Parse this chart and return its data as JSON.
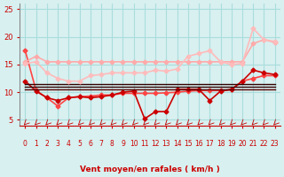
{
  "background_color": "#d8f0f0",
  "grid_color": "#aadddd",
  "xlabel": "Vent moyen/en rafales ( km/h )",
  "xlabel_color": "#cc0000",
  "tick_color": "#cc0000",
  "arrow_color": "#cc0000",
  "xlim": [
    -0.5,
    23.5
  ],
  "ylim": [
    4,
    26
  ],
  "yticks": [
    5,
    10,
    15,
    20,
    25
  ],
  "xticks": [
    0,
    1,
    2,
    3,
    4,
    5,
    6,
    7,
    8,
    9,
    10,
    11,
    12,
    13,
    14,
    15,
    16,
    17,
    18,
    19,
    20,
    21,
    22,
    23
  ],
  "lines": [
    {
      "x": [
        0,
        1,
        2,
        3,
        4,
        5,
        6,
        7,
        8,
        9,
        10,
        11,
        12,
        13,
        14,
        15,
        16,
        17,
        18,
        19,
        20,
        21,
        22,
        23
      ],
      "y": [
        17.5,
        10.3,
        9.0,
        7.5,
        9.0,
        9.2,
        9.3,
        9.5,
        9.5,
        9.8,
        9.8,
        9.8,
        9.8,
        9.9,
        10.0,
        10.2,
        10.3,
        10.3,
        10.3,
        10.5,
        12.0,
        12.5,
        13.0,
        13.0
      ],
      "color": "#ff4444",
      "lw": 1.2,
      "marker": "D",
      "ms": 2.5,
      "alpha": 1.0
    },
    {
      "x": [
        0,
        1,
        2,
        3,
        4,
        5,
        6,
        7,
        8,
        9,
        10,
        11,
        12,
        13,
        14,
        15,
        16,
        17,
        18,
        19,
        20,
        21,
        22,
        23
      ],
      "y": [
        12.0,
        10.2,
        9.0,
        8.5,
        9.0,
        9.2,
        9.0,
        9.2,
        9.5,
        10.0,
        10.2,
        5.2,
        6.5,
        6.5,
        10.5,
        10.5,
        10.5,
        8.5,
        10.2,
        10.5,
        12.0,
        14.0,
        13.5,
        13.2
      ],
      "color": "#cc0000",
      "lw": 1.2,
      "marker": "D",
      "ms": 2.5,
      "alpha": 1.0
    },
    {
      "x": [
        0,
        1,
        2,
        3,
        4,
        5,
        6,
        7,
        8,
        9,
        10,
        11,
        12,
        13,
        14,
        15,
        16,
        17,
        18,
        19,
        20,
        21,
        22,
        23
      ],
      "y": [
        11.5,
        11.5,
        11.5,
        11.5,
        11.5,
        11.5,
        11.5,
        11.5,
        11.5,
        11.5,
        11.5,
        11.5,
        11.5,
        11.5,
        11.5,
        11.5,
        11.5,
        11.5,
        11.5,
        11.5,
        11.5,
        11.5,
        11.5,
        11.5
      ],
      "color": "#330000",
      "lw": 1.0,
      "marker": null,
      "ms": 0,
      "alpha": 1.0
    },
    {
      "x": [
        0,
        1,
        2,
        3,
        4,
        5,
        6,
        7,
        8,
        9,
        10,
        11,
        12,
        13,
        14,
        15,
        16,
        17,
        18,
        19,
        20,
        21,
        22,
        23
      ],
      "y": [
        11.0,
        11.0,
        11.0,
        11.0,
        11.0,
        11.0,
        11.0,
        11.0,
        11.0,
        11.0,
        11.0,
        11.0,
        11.0,
        11.0,
        11.0,
        11.0,
        11.0,
        11.0,
        11.0,
        11.0,
        11.0,
        11.0,
        11.0,
        11.0
      ],
      "color": "#330000",
      "lw": 1.0,
      "marker": null,
      "ms": 0,
      "alpha": 1.0
    },
    {
      "x": [
        0,
        1,
        2,
        3,
        4,
        5,
        6,
        7,
        8,
        9,
        10,
        11,
        12,
        13,
        14,
        15,
        16,
        17,
        18,
        19,
        20,
        21,
        22,
        23
      ],
      "y": [
        10.5,
        10.5,
        10.5,
        10.5,
        10.5,
        10.5,
        10.5,
        10.5,
        10.5,
        10.5,
        10.5,
        10.5,
        10.5,
        10.5,
        10.5,
        10.5,
        10.5,
        10.5,
        10.5,
        10.5,
        10.5,
        10.5,
        10.5,
        10.5
      ],
      "color": "#550000",
      "lw": 1.0,
      "marker": null,
      "ms": 0,
      "alpha": 1.0
    },
    {
      "x": [
        0,
        1,
        2,
        3,
        4,
        5,
        6,
        7,
        8,
        9,
        10,
        11,
        12,
        13,
        14,
        15,
        16,
        17,
        18,
        19,
        20,
        21,
        22,
        23
      ],
      "y": [
        15.5,
        16.5,
        15.5,
        15.5,
        15.5,
        15.5,
        15.5,
        15.5,
        15.5,
        15.5,
        15.5,
        15.5,
        15.5,
        15.5,
        15.5,
        15.5,
        15.5,
        15.5,
        15.5,
        15.5,
        15.5,
        18.8,
        19.5,
        19.0
      ],
      "color": "#ffaaaa",
      "lw": 1.2,
      "marker": "D",
      "ms": 2.5,
      "alpha": 1.0
    },
    {
      "x": [
        0,
        1,
        2,
        3,
        4,
        5,
        6,
        7,
        8,
        9,
        10,
        11,
        12,
        13,
        14,
        15,
        16,
        17,
        18,
        19,
        20,
        21,
        22,
        23
      ],
      "y": [
        15.2,
        15.5,
        13.5,
        12.5,
        12.0,
        12.0,
        13.0,
        13.2,
        13.5,
        13.5,
        13.5,
        13.5,
        14.0,
        13.8,
        14.2,
        16.5,
        17.0,
        17.5,
        15.5,
        15.0,
        15.2,
        21.5,
        19.5,
        19.2
      ],
      "color": "#ffbbbb",
      "lw": 1.2,
      "marker": "D",
      "ms": 2.5,
      "alpha": 1.0
    }
  ]
}
